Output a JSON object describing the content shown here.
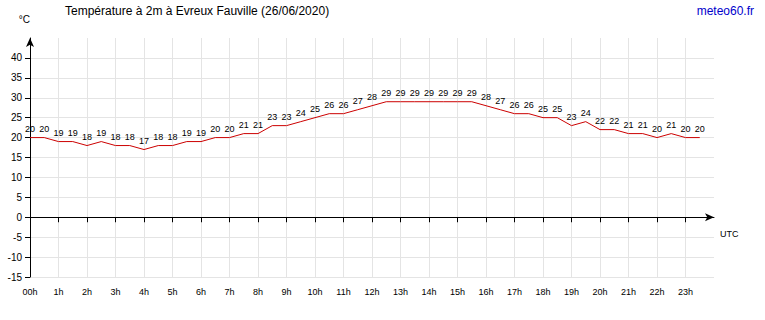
{
  "chart_data": {
    "type": "line",
    "title": "Température à 2m à Evreux Fauville (26/06/2020)",
    "source": "meteo60.fr",
    "y_label": "°C",
    "x_label": "UTC",
    "x": [
      0,
      0.5,
      1,
      1.5,
      2,
      2.5,
      3,
      3.5,
      4,
      4.5,
      5,
      5.5,
      6,
      6.5,
      7,
      7.5,
      8,
      8.5,
      9,
      9.5,
      10,
      10.5,
      11,
      11.5,
      12,
      12.5,
      13,
      13.5,
      14,
      14.5,
      15,
      15.5,
      16,
      16.5,
      17,
      17.5,
      18,
      18.5,
      19,
      19.5,
      20,
      20.5,
      21,
      21.5,
      22,
      22.5,
      23,
      23.5
    ],
    "values": [
      20,
      20,
      19,
      19,
      18,
      19,
      18,
      18,
      17,
      18,
      18,
      19,
      19,
      20,
      20,
      21,
      21,
      23,
      23,
      24,
      25,
      26,
      26,
      27,
      28,
      29,
      29,
      29,
      29,
      29,
      29,
      29,
      28,
      27,
      26,
      26,
      25,
      25,
      23,
      24,
      22,
      22,
      21,
      21,
      20,
      21,
      20,
      20
    ],
    "color": "#cc0000",
    "xlim": [
      0,
      24
    ],
    "xticks": [
      {
        "value": 0,
        "label": "00h"
      },
      {
        "value": 1,
        "label": "1h"
      },
      {
        "value": 2,
        "label": "2h"
      },
      {
        "value": 3,
        "label": "3h"
      },
      {
        "value": 4,
        "label": "4h"
      },
      {
        "value": 5,
        "label": "5h"
      },
      {
        "value": 6,
        "label": "6h"
      },
      {
        "value": 7,
        "label": "7h"
      },
      {
        "value": 8,
        "label": "8h"
      },
      {
        "value": 9,
        "label": "9h"
      },
      {
        "value": 10,
        "label": "10h"
      },
      {
        "value": 11,
        "label": "11h"
      },
      {
        "value": 12,
        "label": "12h"
      },
      {
        "value": 13,
        "label": "13h"
      },
      {
        "value": 14,
        "label": "14h"
      },
      {
        "value": 15,
        "label": "15h"
      },
      {
        "value": 16,
        "label": "16h"
      },
      {
        "value": 17,
        "label": "17h"
      },
      {
        "value": 18,
        "label": "18h"
      },
      {
        "value": 19,
        "label": "19h"
      },
      {
        "value": 20,
        "label": "20h"
      },
      {
        "value": 21,
        "label": "21h"
      },
      {
        "value": 22,
        "label": "22h"
      },
      {
        "value": 23,
        "label": "23h"
      }
    ],
    "ylim": [
      -15,
      45
    ],
    "yticks": [
      -15,
      -10,
      -5,
      0,
      5,
      10,
      15,
      20,
      25,
      30,
      35,
      40
    ],
    "grid": true,
    "data_labels": true
  }
}
